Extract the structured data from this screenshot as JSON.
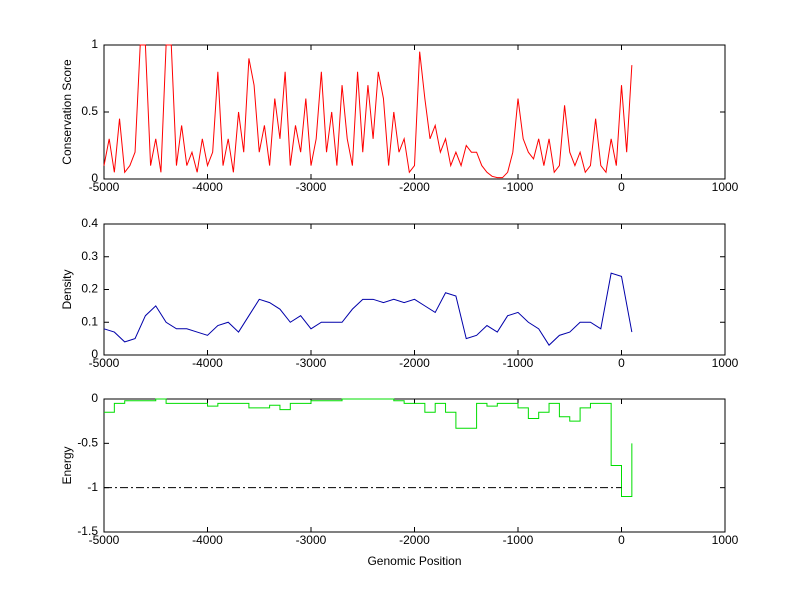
{
  "chart_data": [
    {
      "type": "line",
      "y_label": "Conservation Score",
      "xlim": [
        -5000,
        1000
      ],
      "xticks": [
        -5000,
        -4000,
        -3000,
        -2000,
        -1000,
        0,
        1000
      ],
      "ylim": [
        0,
        1
      ],
      "yticks": [
        0,
        0.5,
        1
      ],
      "series": [
        {
          "color": "#ff0000",
          "x": [
            -5000,
            -4950,
            -4900,
            -4850,
            -4800,
            -4750,
            -4700,
            -4650,
            -4600,
            -4550,
            -4500,
            -4450,
            -4400,
            -4350,
            -4300,
            -4250,
            -4200,
            -4150,
            -4100,
            -4050,
            -4000,
            -3950,
            -3900,
            -3850,
            -3800,
            -3750,
            -3700,
            -3650,
            -3600,
            -3550,
            -3500,
            -3450,
            -3400,
            -3350,
            -3300,
            -3250,
            -3200,
            -3150,
            -3100,
            -3050,
            -3000,
            -2950,
            -2900,
            -2850,
            -2800,
            -2750,
            -2700,
            -2650,
            -2600,
            -2550,
            -2500,
            -2450,
            -2400,
            -2350,
            -2300,
            -2250,
            -2200,
            -2150,
            -2100,
            -2050,
            -2000,
            -1950,
            -1900,
            -1850,
            -1800,
            -1750,
            -1700,
            -1650,
            -1600,
            -1550,
            -1500,
            -1450,
            -1400,
            -1350,
            -1300,
            -1250,
            -1200,
            -1150,
            -1100,
            -1050,
            -1000,
            -950,
            -900,
            -850,
            -800,
            -750,
            -700,
            -650,
            -600,
            -550,
            -500,
            -450,
            -400,
            -350,
            -300,
            -250,
            -200,
            -150,
            -100,
            -50,
            0,
            50,
            100
          ],
          "values": [
            0.1,
            0.3,
            0.05,
            0.45,
            0.05,
            0.1,
            0.2,
            1,
            1,
            0.1,
            0.3,
            0.05,
            1,
            1,
            0.1,
            0.4,
            0.1,
            0.2,
            0.05,
            0.3,
            0.1,
            0.2,
            0.8,
            0.1,
            0.3,
            0.05,
            0.5,
            0.2,
            0.9,
            0.7,
            0.2,
            0.4,
            0.1,
            0.6,
            0.3,
            0.8,
            0.1,
            0.4,
            0.2,
            0.6,
            0.1,
            0.3,
            0.8,
            0.2,
            0.5,
            0.1,
            0.7,
            0.3,
            0.1,
            0.8,
            0.2,
            0.7,
            0.3,
            0.8,
            0.6,
            0.1,
            0.5,
            0.2,
            0.3,
            0.05,
            0.1,
            0.95,
            0.6,
            0.3,
            0.4,
            0.2,
            0.3,
            0.1,
            0.2,
            0.1,
            0.25,
            0.2,
            0.2,
            0.1,
            0.05,
            0.02,
            0.01,
            0.01,
            0.05,
            0.2,
            0.6,
            0.3,
            0.2,
            0.15,
            0.3,
            0.1,
            0.3,
            0.05,
            0.1,
            0.55,
            0.2,
            0.1,
            0.2,
            0.05,
            0.1,
            0.45,
            0.1,
            0.05,
            0.3,
            0.1,
            0.7,
            0.2,
            0.85
          ]
        }
      ]
    },
    {
      "type": "line",
      "y_label": "Density",
      "xlim": [
        -5000,
        1000
      ],
      "xticks": [
        -5000,
        -4000,
        -3000,
        -2000,
        -1000,
        0,
        1000
      ],
      "ylim": [
        0,
        0.4
      ],
      "yticks": [
        0,
        0.1,
        0.2,
        0.3,
        0.4
      ],
      "series": [
        {
          "color": "#0000aa",
          "x": [
            -5000,
            -4900,
            -4800,
            -4700,
            -4600,
            -4500,
            -4400,
            -4300,
            -4200,
            -4100,
            -4000,
            -3900,
            -3800,
            -3700,
            -3600,
            -3500,
            -3400,
            -3300,
            -3200,
            -3100,
            -3000,
            -2900,
            -2800,
            -2700,
            -2600,
            -2500,
            -2400,
            -2300,
            -2200,
            -2100,
            -2000,
            -1900,
            -1800,
            -1700,
            -1600,
            -1500,
            -1400,
            -1300,
            -1200,
            -1100,
            -1000,
            -900,
            -800,
            -700,
            -600,
            -500,
            -400,
            -300,
            -200,
            -100,
            0,
            100
          ],
          "values": [
            0.08,
            0.07,
            0.04,
            0.05,
            0.12,
            0.15,
            0.1,
            0.08,
            0.08,
            0.07,
            0.06,
            0.09,
            0.1,
            0.07,
            0.12,
            0.17,
            0.16,
            0.14,
            0.1,
            0.12,
            0.08,
            0.1,
            0.1,
            0.1,
            0.14,
            0.17,
            0.17,
            0.16,
            0.17,
            0.16,
            0.17,
            0.15,
            0.13,
            0.19,
            0.18,
            0.05,
            0.06,
            0.09,
            0.07,
            0.12,
            0.13,
            0.1,
            0.08,
            0.03,
            0.06,
            0.07,
            0.1,
            0.1,
            0.08,
            0.25,
            0.24,
            0.07
          ]
        }
      ]
    },
    {
      "type": "line",
      "y_label": "Energy",
      "x_label": "Genomic Position",
      "step": true,
      "xlim": [
        -5000,
        1000
      ],
      "xticks": [
        -5000,
        -4000,
        -3000,
        -2000,
        -1000,
        0,
        1000
      ],
      "ylim": [
        -1.5,
        0
      ],
      "yticks": [
        -1.5,
        -1,
        -0.5,
        0
      ],
      "series": [
        {
          "color": "#00dd00",
          "x": [
            -5000,
            -4900,
            -4800,
            -4700,
            -4600,
            -4500,
            -4400,
            -4300,
            -4200,
            -4100,
            -4000,
            -3900,
            -3800,
            -3700,
            -3600,
            -3500,
            -3400,
            -3300,
            -3200,
            -3100,
            -3000,
            -2900,
            -2800,
            -2700,
            -2600,
            -2500,
            -2400,
            -2300,
            -2200,
            -2100,
            -2000,
            -1900,
            -1800,
            -1700,
            -1600,
            -1500,
            -1400,
            -1300,
            -1200,
            -1100,
            -1000,
            -900,
            -800,
            -700,
            -600,
            -500,
            -400,
            -300,
            -200,
            -100,
            0,
            100
          ],
          "values": [
            -0.15,
            -0.05,
            -0.02,
            -0.02,
            -0.02,
            0,
            -0.05,
            -0.05,
            -0.05,
            -0.05,
            -0.08,
            -0.05,
            -0.05,
            -0.05,
            -0.1,
            -0.1,
            -0.07,
            -0.12,
            -0.05,
            -0.05,
            -0.02,
            -0.02,
            -0.02,
            0,
            0,
            0,
            0,
            0,
            -0.02,
            -0.05,
            -0.05,
            -0.15,
            -0.05,
            -0.15,
            -0.33,
            -0.33,
            -0.05,
            -0.08,
            -0.05,
            -0.05,
            -0.1,
            -0.22,
            -0.15,
            -0.05,
            -0.2,
            -0.25,
            -0.1,
            -0.05,
            -0.05,
            -0.75,
            -1.1,
            -0.5
          ]
        },
        {
          "color": "#000000",
          "dash": "8 3 2 3",
          "x": [
            -5000,
            0
          ],
          "values": [
            -1,
            -1
          ]
        }
      ]
    }
  ]
}
